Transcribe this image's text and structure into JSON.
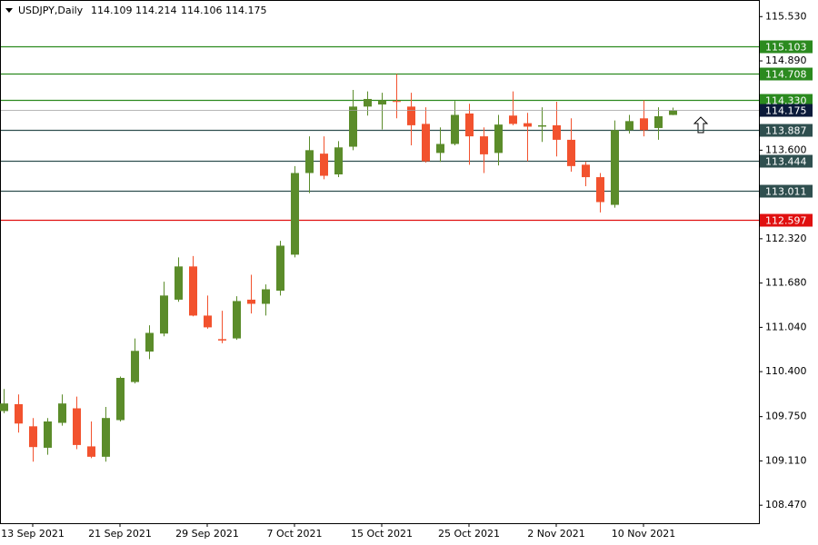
{
  "chart_data": {
    "type": "candlestick",
    "title": "USDJPY,Daily",
    "categories": [
      null,
      null,
      "13 Sep 2021",
      null,
      null,
      null,
      null,
      null,
      "21 Sep 2021",
      null,
      null,
      null,
      null,
      null,
      "29 Sep 2021",
      null,
      null,
      null,
      null,
      null,
      "7 Oct 2021",
      null,
      null,
      null,
      null,
      null,
      "15 Oct 2021",
      null,
      null,
      null,
      null,
      null,
      "25 Oct 2021",
      null,
      null,
      null,
      null,
      null,
      "2 Nov 2021",
      null,
      null,
      null,
      null,
      null,
      "10 Nov 2021",
      null,
      null
    ],
    "open": [
      109.83,
      109.93,
      109.61,
      109.3,
      109.66,
      109.87,
      109.32,
      109.17,
      109.7,
      110.25,
      110.69,
      110.95,
      111.44,
      111.92,
      111.21,
      110.87,
      110.88,
      111.44,
      111.38,
      111.57,
      112.09,
      113.27,
      113.55,
      113.25,
      113.65,
      114.23,
      114.26,
      114.31,
      114.23,
      113.98,
      113.56,
      113.69,
      114.13,
      113.8,
      113.56,
      114.1,
      113.99,
      113.94,
      113.96,
      113.75,
      113.39,
      113.21,
      112.81,
      113.89,
      114.06,
      113.92,
      114.109
    ],
    "high": [
      110.15,
      110.07,
      109.73,
      109.73,
      110.07,
      110.04,
      109.68,
      109.89,
      110.33,
      110.88,
      111.07,
      111.7,
      112.05,
      112.07,
      111.5,
      111.28,
      111.49,
      111.8,
      111.66,
      112.29,
      113.37,
      113.8,
      113.8,
      113.73,
      114.47,
      114.45,
      114.43,
      114.7,
      114.43,
      114.22,
      113.93,
      114.31,
      114.27,
      113.93,
      114.11,
      114.45,
      114.14,
      114.22,
      114.3,
      114.06,
      113.43,
      113.27,
      114.03,
      114.11,
      114.32,
      114.22,
      114.214
    ],
    "low": [
      109.8,
      109.52,
      109.1,
      109.2,
      109.62,
      109.28,
      109.15,
      109.1,
      109.68,
      110.23,
      110.58,
      110.91,
      111.41,
      111.2,
      111.02,
      110.81,
      110.86,
      111.24,
      111.21,
      111.5,
      112.05,
      112.98,
      113.18,
      113.21,
      113.6,
      114.1,
      113.9,
      114.06,
      113.67,
      113.42,
      113.43,
      113.67,
      113.39,
      113.27,
      113.38,
      113.96,
      113.44,
      113.72,
      113.51,
      113.29,
      113.08,
      112.7,
      112.77,
      113.84,
      113.8,
      113.75,
      114.106
    ],
    "close": [
      109.94,
      109.65,
      109.31,
      109.68,
      109.94,
      109.34,
      109.17,
      109.73,
      110.31,
      110.7,
      110.96,
      111.5,
      111.92,
      111.21,
      111.04,
      110.85,
      111.42,
      111.38,
      111.59,
      112.22,
      113.27,
      113.6,
      113.23,
      113.64,
      114.23,
      114.34,
      114.32,
      114.3,
      113.96,
      113.44,
      113.69,
      114.11,
      113.8,
      113.54,
      113.97,
      113.98,
      113.94,
      113.96,
      113.75,
      113.37,
      113.21,
      112.85,
      113.89,
      114.02,
      113.89,
      114.09,
      114.175
    ],
    "up_color": "#5b8c2a",
    "down_color": "#f2522e",
    "ylim": [
      108.21,
      115.77
    ],
    "yticks": [
      {
        "value": 115.53,
        "label": "115.530"
      },
      {
        "value": 114.89,
        "label": "114.890"
      },
      {
        "value": 113.6,
        "label": "113.600"
      },
      {
        "value": 112.32,
        "label": "112.320"
      },
      {
        "value": 111.68,
        "label": "111.680"
      },
      {
        "value": 111.04,
        "label": "111.040"
      },
      {
        "value": 110.4,
        "label": "110.400"
      },
      {
        "value": 109.75,
        "label": "109.750"
      },
      {
        "value": 109.11,
        "label": "109.110"
      },
      {
        "value": 108.47,
        "label": "108.470"
      }
    ],
    "levels": [
      {
        "value": 115.103,
        "label": "115.103",
        "color": "#2b8a1f"
      },
      {
        "value": 114.708,
        "label": "114.708",
        "color": "#2b8a1f"
      },
      {
        "value": 114.33,
        "label": "114.330",
        "color": "#2b8a1f"
      },
      {
        "value": 113.887,
        "label": "113.887",
        "color": "#2f4f4f"
      },
      {
        "value": 113.444,
        "label": "113.444",
        "color": "#2f4f4f"
      },
      {
        "value": 113.011,
        "label": "113.011",
        "color": "#2f4f4f"
      },
      {
        "value": 112.597,
        "label": "112.597",
        "color": "#e01010"
      }
    ],
    "price_line_color": "#0b1a3a"
  }
}
